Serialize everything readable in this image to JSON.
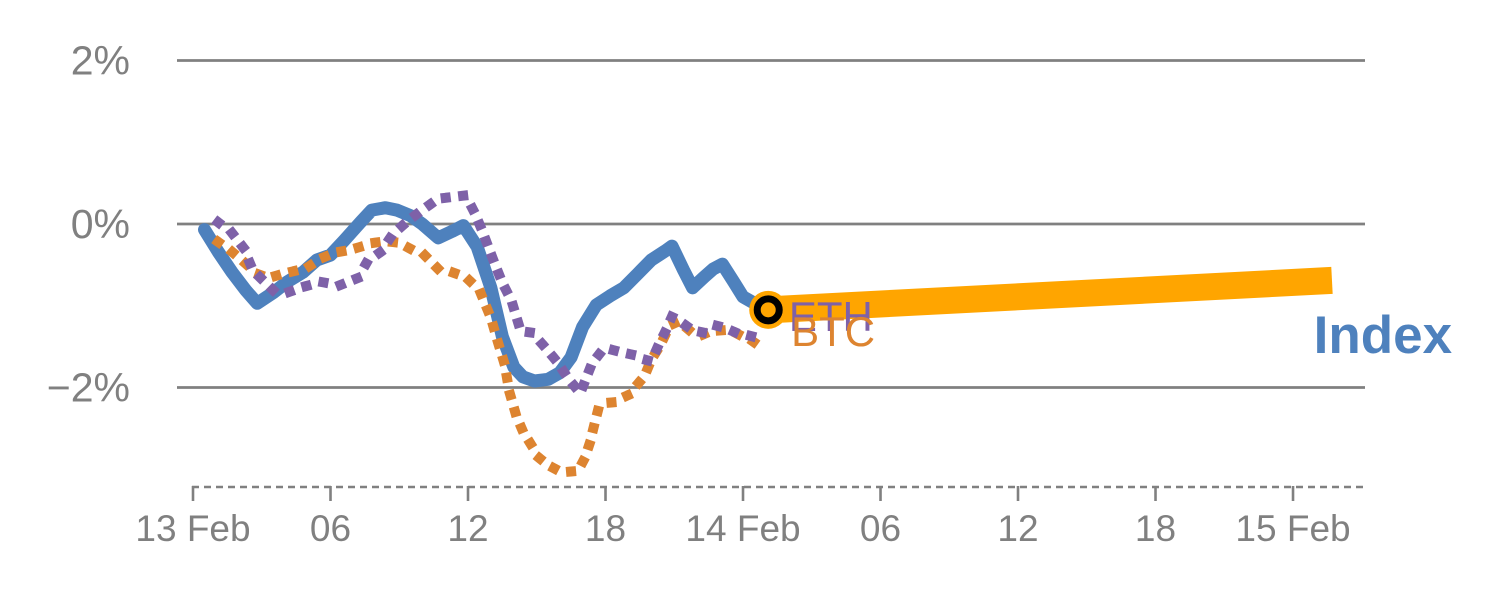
{
  "chart_data": {
    "type": "line",
    "title": "",
    "description": "Intraday percent-change chart comparing an Index (solid blue), BTC (dotted orange) and ETH (dotted purple), with an orange projection band continuing the Index forward from the last observed point.",
    "x_axis": {
      "unit": "hours since 13 Feb 00:00",
      "tick_hours": [
        0,
        6,
        12,
        18,
        24,
        30,
        36,
        42,
        48
      ],
      "tick_labels": [
        "13 Feb",
        "06",
        "12",
        "18",
        "14 Feb",
        "06",
        "12",
        "18",
        "15 Feb"
      ],
      "axis_style": "dashed"
    },
    "y_axis": {
      "unit": "percent",
      "tick_values": [
        2,
        0,
        -2
      ],
      "tick_labels": [
        "2%",
        "0%",
        "−2%"
      ],
      "visible_range": [
        -3.3,
        2.4
      ],
      "grid": true
    },
    "colors": {
      "index_blue": "#4E81BD",
      "btc_orange": "#DD8430",
      "eth_purple": "#7E61A8",
      "band_orange": "#FFA500",
      "marker_ring": "#000000",
      "axis_gray": "#808080"
    },
    "series": [
      {
        "name": "Index",
        "style": "solid",
        "color": "#4E81BD",
        "points": [
          [
            0.5,
            -0.07
          ],
          [
            1.1,
            -0.34
          ],
          [
            1.7,
            -0.59
          ],
          [
            2.3,
            -0.81
          ],
          [
            2.8,
            -0.97
          ],
          [
            3.5,
            -0.84
          ],
          [
            4.1,
            -0.71
          ],
          [
            4.8,
            -0.59
          ],
          [
            5.4,
            -0.44
          ],
          [
            6.0,
            -0.38
          ],
          [
            6.6,
            -0.2
          ],
          [
            7.3,
            0.02
          ],
          [
            7.8,
            0.17
          ],
          [
            8.4,
            0.2
          ],
          [
            8.9,
            0.17
          ],
          [
            9.5,
            0.1
          ],
          [
            10.0,
            0.0
          ],
          [
            10.7,
            -0.17
          ],
          [
            11.3,
            -0.09
          ],
          [
            11.8,
            -0.02
          ],
          [
            12.4,
            -0.28
          ],
          [
            13.0,
            -0.78
          ],
          [
            13.5,
            -1.38
          ],
          [
            14.0,
            -1.75
          ],
          [
            14.4,
            -1.87
          ],
          [
            14.9,
            -1.92
          ],
          [
            15.5,
            -1.9
          ],
          [
            16.0,
            -1.82
          ],
          [
            16.5,
            -1.63
          ],
          [
            17.0,
            -1.26
          ],
          [
            17.6,
            -0.99
          ],
          [
            18.2,
            -0.88
          ],
          [
            18.8,
            -0.78
          ],
          [
            19.4,
            -0.61
          ],
          [
            20.0,
            -0.44
          ],
          [
            20.6,
            -0.33
          ],
          [
            20.9,
            -0.27
          ],
          [
            21.4,
            -0.56
          ],
          [
            21.8,
            -0.78
          ],
          [
            22.3,
            -0.65
          ],
          [
            22.7,
            -0.55
          ],
          [
            23.1,
            -0.49
          ],
          [
            23.6,
            -0.71
          ],
          [
            24.0,
            -0.89
          ],
          [
            24.5,
            -0.97
          ],
          [
            25.1,
            -1.05
          ]
        ]
      },
      {
        "name": "BTC",
        "style": "dotted",
        "color": "#DD8430",
        "points": [
          [
            1.1,
            -0.22
          ],
          [
            1.7,
            -0.34
          ],
          [
            2.2,
            -0.46
          ],
          [
            2.8,
            -0.61
          ],
          [
            3.3,
            -0.66
          ],
          [
            3.9,
            -0.61
          ],
          [
            4.5,
            -0.57
          ],
          [
            5.0,
            -0.53
          ],
          [
            5.6,
            -0.42
          ],
          [
            6.2,
            -0.35
          ],
          [
            6.8,
            -0.32
          ],
          [
            7.3,
            -0.28
          ],
          [
            7.9,
            -0.23
          ],
          [
            8.4,
            -0.21
          ],
          [
            9.0,
            -0.23
          ],
          [
            9.6,
            -0.32
          ],
          [
            10.1,
            -0.38
          ],
          [
            10.7,
            -0.55
          ],
          [
            11.3,
            -0.59
          ],
          [
            11.9,
            -0.65
          ],
          [
            12.5,
            -0.81
          ],
          [
            13.0,
            -1.15
          ],
          [
            13.3,
            -1.44
          ],
          [
            13.6,
            -1.72
          ],
          [
            13.8,
            -2.05
          ],
          [
            14.1,
            -2.34
          ],
          [
            14.4,
            -2.54
          ],
          [
            14.8,
            -2.72
          ],
          [
            15.1,
            -2.86
          ],
          [
            15.5,
            -2.95
          ],
          [
            15.9,
            -3.01
          ],
          [
            16.4,
            -3.03
          ],
          [
            16.8,
            -3.02
          ],
          [
            17.1,
            -2.86
          ],
          [
            17.3,
            -2.69
          ],
          [
            17.5,
            -2.47
          ],
          [
            17.7,
            -2.25
          ],
          [
            18.0,
            -2.19
          ],
          [
            18.4,
            -2.18
          ],
          [
            18.7,
            -2.13
          ],
          [
            19.1,
            -2.08
          ],
          [
            19.4,
            -1.96
          ],
          [
            19.7,
            -1.86
          ],
          [
            20.0,
            -1.66
          ],
          [
            20.4,
            -1.48
          ],
          [
            20.8,
            -1.24
          ],
          [
            21.2,
            -1.19
          ],
          [
            21.7,
            -1.31
          ],
          [
            22.1,
            -1.37
          ],
          [
            22.6,
            -1.31
          ],
          [
            23.1,
            -1.3
          ],
          [
            23.6,
            -1.32
          ],
          [
            24.0,
            -1.38
          ],
          [
            24.4,
            -1.43
          ],
          [
            24.7,
            -1.49
          ]
        ]
      },
      {
        "name": "ETH",
        "style": "dotted",
        "color": "#7E61A8",
        "points": [
          [
            1.1,
            0.02
          ],
          [
            1.7,
            -0.11
          ],
          [
            2.2,
            -0.29
          ],
          [
            2.5,
            -0.49
          ],
          [
            2.8,
            -0.62
          ],
          [
            3.5,
            -0.81
          ],
          [
            4.1,
            -0.84
          ],
          [
            4.8,
            -0.77
          ],
          [
            5.6,
            -0.71
          ],
          [
            6.4,
            -0.75
          ],
          [
            7.2,
            -0.66
          ],
          [
            7.6,
            -0.46
          ],
          [
            8.2,
            -0.34
          ],
          [
            8.7,
            -0.13
          ],
          [
            9.3,
            0.02
          ],
          [
            9.9,
            0.15
          ],
          [
            10.7,
            0.31
          ],
          [
            11.3,
            0.33
          ],
          [
            11.9,
            0.35
          ],
          [
            12.3,
            0.13
          ],
          [
            12.6,
            -0.07
          ],
          [
            12.9,
            -0.29
          ],
          [
            13.2,
            -0.51
          ],
          [
            13.5,
            -0.72
          ],
          [
            13.9,
            -0.94
          ],
          [
            14.3,
            -1.31
          ],
          [
            14.8,
            -1.33
          ],
          [
            15.4,
            -1.52
          ],
          [
            15.9,
            -1.69
          ],
          [
            16.4,
            -1.9
          ],
          [
            16.9,
            -2.07
          ],
          [
            17.4,
            -1.71
          ],
          [
            17.9,
            -1.53
          ],
          [
            18.3,
            -1.54
          ],
          [
            18.7,
            -1.57
          ],
          [
            19.2,
            -1.6
          ],
          [
            19.6,
            -1.65
          ],
          [
            20.0,
            -1.68
          ],
          [
            20.3,
            -1.49
          ],
          [
            20.6,
            -1.32
          ],
          [
            20.9,
            -1.13
          ],
          [
            21.5,
            -1.24
          ],
          [
            21.8,
            -1.3
          ],
          [
            22.3,
            -1.33
          ],
          [
            22.8,
            -1.24
          ],
          [
            23.2,
            -1.27
          ],
          [
            23.7,
            -1.33
          ],
          [
            24.2,
            -1.36
          ],
          [
            24.6,
            -1.39
          ],
          [
            24.9,
            -1.48
          ]
        ]
      },
      {
        "name": "Index projection band",
        "style": "band",
        "color": "#FFA500",
        "points": [
          [
            25.1,
            -1.05
          ],
          [
            49.7,
            -0.69
          ]
        ]
      }
    ],
    "marker": {
      "name": "current-point",
      "x_hours": 25.1,
      "y_pct": -1.05,
      "fill": "#FFA500",
      "ring_color": "#000000"
    },
    "end_labels": [
      {
        "text": "ETH",
        "color": "#7E61A8",
        "x_hours": 26.0,
        "y_pct": -1.31,
        "bold": false
      },
      {
        "text": "BTC",
        "color": "#DD8430",
        "x_hours": 26.1,
        "y_pct": -1.49,
        "bold": false
      },
      {
        "text": "Index",
        "color": "#4E81BD",
        "x_hours": 48.9,
        "y_pct": -1.58,
        "bold": true
      }
    ],
    "legend_position": "end-of-line labels"
  }
}
